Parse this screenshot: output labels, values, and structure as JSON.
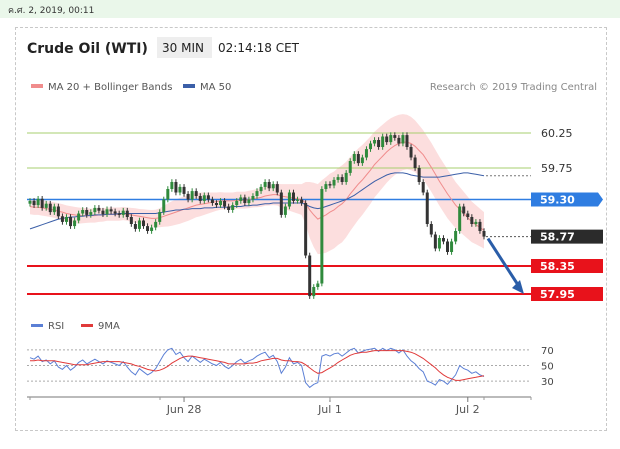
{
  "timestamp": "ค.ศ. 2, 2019, 00:11",
  "header": {
    "instrument": "Crude Oil (WTI)",
    "timeframe": "30 MIN",
    "time": "02:14:18 CET"
  },
  "legend": {
    "ma20": "MA 20 + Bollinger Bands",
    "ma50": "MA 50"
  },
  "credit": "Research © 2019 Trading Central",
  "rsi_legend": {
    "rsi": "RSI",
    "ma": "9MA"
  },
  "colors": {
    "support": "#e8121b",
    "pivot": "#2f7de1",
    "last": "#2b2b2b",
    "target": "#a7cf6f",
    "candle_up": "#2f8a3c",
    "candle_down": "#333333",
    "band": "#fbd8d8",
    "ma20": "#f08c8c",
    "ma50": "#3b5fa8",
    "arrow": "#2a5da8",
    "rsi_line": "#5b7fd5",
    "rsi_ma": "#e03a3a"
  },
  "chart_data": {
    "type": "candlestick",
    "ylim": [
      57.8,
      60.45
    ],
    "x_ticks": [
      "Jun 28",
      "Jul 1",
      "Jul 2"
    ],
    "levels": [
      {
        "value": "60.25",
        "kind": "resistance"
      },
      {
        "value": "59.75",
        "kind": "resistance"
      },
      {
        "value": "59.30",
        "kind": "pivot"
      },
      {
        "value": "58.77",
        "kind": "last"
      },
      {
        "value": "58.35",
        "kind": "support"
      },
      {
        "value": "57.95",
        "kind": "support"
      }
    ],
    "close": [
      59.28,
      59.22,
      59.31,
      59.18,
      59.24,
      59.12,
      59.2,
      59.06,
      58.98,
      59.05,
      58.92,
      59.0,
      59.1,
      59.15,
      59.08,
      59.12,
      59.18,
      59.14,
      59.09,
      59.16,
      59.13,
      59.1,
      59.08,
      59.14,
      59.05,
      58.95,
      58.88,
      59.0,
      58.92,
      58.85,
      58.9,
      58.98,
      59.12,
      59.3,
      59.45,
      59.55,
      59.4,
      59.48,
      59.38,
      59.3,
      59.42,
      59.35,
      59.28,
      59.36,
      59.3,
      59.25,
      59.22,
      59.28,
      59.2,
      59.15,
      59.22,
      59.28,
      59.33,
      59.25,
      59.3,
      59.35,
      59.42,
      59.48,
      59.55,
      59.46,
      59.52,
      59.4,
      59.08,
      59.2,
      59.4,
      59.28,
      59.3,
      59.25,
      58.5,
      57.92,
      58.05,
      58.1,
      59.45,
      59.52,
      59.5,
      59.58,
      59.62,
      59.55,
      59.68,
      59.85,
      59.95,
      59.82,
      59.9,
      60.02,
      60.1,
      60.15,
      60.05,
      60.2,
      60.12,
      60.22,
      60.18,
      60.1,
      60.22,
      60.05,
      59.9,
      59.75,
      59.55,
      59.4,
      58.95,
      58.8,
      58.6,
      58.75,
      58.7,
      58.55,
      58.7,
      58.85,
      59.2,
      59.1,
      59.05,
      58.95,
      58.98,
      58.85,
      58.77
    ],
    "ma20": [
      59.2,
      59.19,
      59.19,
      59.18,
      59.17,
      59.16,
      59.15,
      59.13,
      59.12,
      59.1,
      59.09,
      59.08,
      59.07,
      59.07,
      59.07,
      59.07,
      59.07,
      59.08,
      59.08,
      59.09,
      59.09,
      59.09,
      59.09,
      59.1,
      59.09,
      59.08,
      59.07,
      59.06,
      59.05,
      59.04,
      59.03,
      59.03,
      59.04,
      59.06,
      59.08,
      59.1,
      59.12,
      59.14,
      59.16,
      59.18,
      59.2,
      59.22,
      59.23,
      59.24,
      59.25,
      59.26,
      59.27,
      59.28,
      59.28,
      59.28,
      59.28,
      59.29,
      59.29,
      59.29,
      59.3,
      59.31,
      59.32,
      59.33,
      59.35,
      59.36,
      59.37,
      59.37,
      59.35,
      59.34,
      59.33,
      59.32,
      59.31,
      59.3,
      59.25,
      59.15,
      59.08,
      59.02,
      59.05,
      59.08,
      59.12,
      59.15,
      59.2,
      59.24,
      59.3,
      59.38,
      59.45,
      59.52,
      59.58,
      59.65,
      59.72,
      59.8,
      59.86,
      59.92,
      59.98,
      60.03,
      60.07,
      60.1,
      60.12,
      60.12,
      60.1,
      60.06,
      60.0,
      59.94,
      59.85,
      59.76,
      59.66,
      59.56,
      59.47,
      59.38,
      59.3,
      59.22,
      59.16,
      59.1,
      59.04,
      58.98,
      58.94,
      58.9,
      58.86
    ],
    "bb_width": [
      0.22,
      0.22,
      0.22,
      0.22,
      0.22,
      0.22,
      0.22,
      0.23,
      0.23,
      0.23,
      0.23,
      0.23,
      0.23,
      0.22,
      0.21,
      0.2,
      0.2,
      0.2,
      0.19,
      0.19,
      0.19,
      0.19,
      0.19,
      0.19,
      0.19,
      0.2,
      0.21,
      0.21,
      0.22,
      0.23,
      0.24,
      0.25,
      0.27,
      0.3,
      0.33,
      0.35,
      0.36,
      0.37,
      0.37,
      0.37,
      0.36,
      0.35,
      0.34,
      0.32,
      0.3,
      0.28,
      0.26,
      0.25,
      0.24,
      0.24,
      0.24,
      0.24,
      0.24,
      0.24,
      0.25,
      0.25,
      0.26,
      0.27,
      0.28,
      0.29,
      0.3,
      0.31,
      0.34,
      0.36,
      0.38,
      0.4,
      0.42,
      0.44,
      0.6,
      0.8,
      0.92,
      1.0,
      1.05,
      1.08,
      1.1,
      1.1,
      1.1,
      1.1,
      1.08,
      1.06,
      1.04,
      1.02,
      1.0,
      0.98,
      0.96,
      0.94,
      0.92,
      0.9,
      0.88,
      0.86,
      0.84,
      0.82,
      0.8,
      0.78,
      0.76,
      0.74,
      0.72,
      0.7,
      0.7,
      0.7,
      0.7,
      0.7,
      0.7,
      0.7,
      0.68,
      0.66,
      0.64,
      0.62,
      0.6,
      0.58,
      0.56,
      0.54,
      0.52
    ],
    "ma50": [
      58.88,
      58.9,
      58.92,
      58.94,
      58.96,
      58.98,
      59.0,
      59.02,
      59.03,
      59.04,
      59.05,
      59.05,
      59.06,
      59.06,
      59.07,
      59.07,
      59.08,
      59.08,
      59.08,
      59.09,
      59.09,
      59.09,
      59.1,
      59.1,
      59.1,
      59.1,
      59.1,
      59.1,
      59.1,
      59.1,
      59.1,
      59.1,
      59.11,
      59.12,
      59.13,
      59.14,
      59.15,
      59.15,
      59.16,
      59.16,
      59.17,
      59.17,
      59.17,
      59.18,
      59.18,
      59.18,
      59.19,
      59.19,
      59.19,
      59.19,
      59.2,
      59.2,
      59.2,
      59.21,
      59.21,
      59.22,
      59.22,
      59.23,
      59.24,
      59.24,
      59.25,
      59.25,
      59.25,
      59.25,
      59.25,
      59.25,
      59.25,
      59.25,
      59.23,
      59.2,
      59.18,
      59.17,
      59.18,
      59.2,
      59.22,
      59.24,
      59.26,
      59.28,
      59.3,
      59.33,
      59.36,
      59.4,
      59.44,
      59.48,
      59.52,
      59.56,
      59.59,
      59.62,
      59.65,
      59.67,
      59.68,
      59.68,
      59.68,
      59.67,
      59.65,
      59.64,
      59.63,
      59.62,
      59.62,
      59.62,
      59.62,
      59.62,
      59.63,
      59.64,
      59.65,
      59.66,
      59.67,
      59.68,
      59.68,
      59.67,
      59.66,
      59.65,
      59.64
    ],
    "rsi": {
      "ticks": [
        "70",
        "50",
        "30"
      ],
      "ylim": [
        20,
        80
      ],
      "values": [
        60,
        58,
        62,
        55,
        57,
        52,
        56,
        48,
        45,
        50,
        44,
        48,
        54,
        57,
        52,
        55,
        58,
        55,
        52,
        56,
        54,
        52,
        50,
        55,
        48,
        42,
        38,
        46,
        42,
        38,
        41,
        46,
        55,
        64,
        70,
        72,
        64,
        67,
        60,
        55,
        62,
        58,
        54,
        58,
        55,
        52,
        50,
        54,
        49,
        46,
        50,
        55,
        58,
        53,
        56,
        58,
        62,
        65,
        67,
        60,
        63,
        55,
        40,
        48,
        60,
        52,
        54,
        50,
        28,
        22,
        26,
        28,
        62,
        64,
        62,
        65,
        66,
        62,
        66,
        70,
        72,
        66,
        68,
        70,
        71,
        72,
        68,
        72,
        69,
        72,
        70,
        66,
        70,
        62,
        56,
        52,
        46,
        42,
        30,
        28,
        25,
        32,
        30,
        26,
        32,
        38,
        50,
        46,
        44,
        40,
        42,
        38,
        36
      ],
      "ma": [
        56,
        56,
        57,
        56,
        56,
        56,
        56,
        55,
        54,
        53,
        52,
        51,
        51,
        51,
        51,
        52,
        53,
        54,
        55,
        55,
        55,
        55,
        55,
        54,
        53,
        52,
        50,
        49,
        47,
        45,
        44,
        43,
        44,
        46,
        49,
        53,
        56,
        59,
        61,
        62,
        62,
        61,
        60,
        59,
        58,
        57,
        56,
        55,
        54,
        52,
        52,
        52,
        52,
        52,
        53,
        53,
        54,
        56,
        57,
        58,
        59,
        59,
        57,
        56,
        56,
        55,
        55,
        54,
        51,
        47,
        43,
        40,
        41,
        44,
        47,
        50,
        54,
        57,
        60,
        63,
        65,
        66,
        67,
        67,
        68,
        69,
        69,
        69,
        69,
        69,
        69,
        69,
        69,
        68,
        67,
        65,
        62,
        59,
        55,
        51,
        47,
        42,
        38,
        35,
        33,
        31,
        31,
        32,
        33,
        34,
        35,
        36,
        37
      ],
      "ref_lines": [
        70,
        50,
        30
      ]
    }
  }
}
